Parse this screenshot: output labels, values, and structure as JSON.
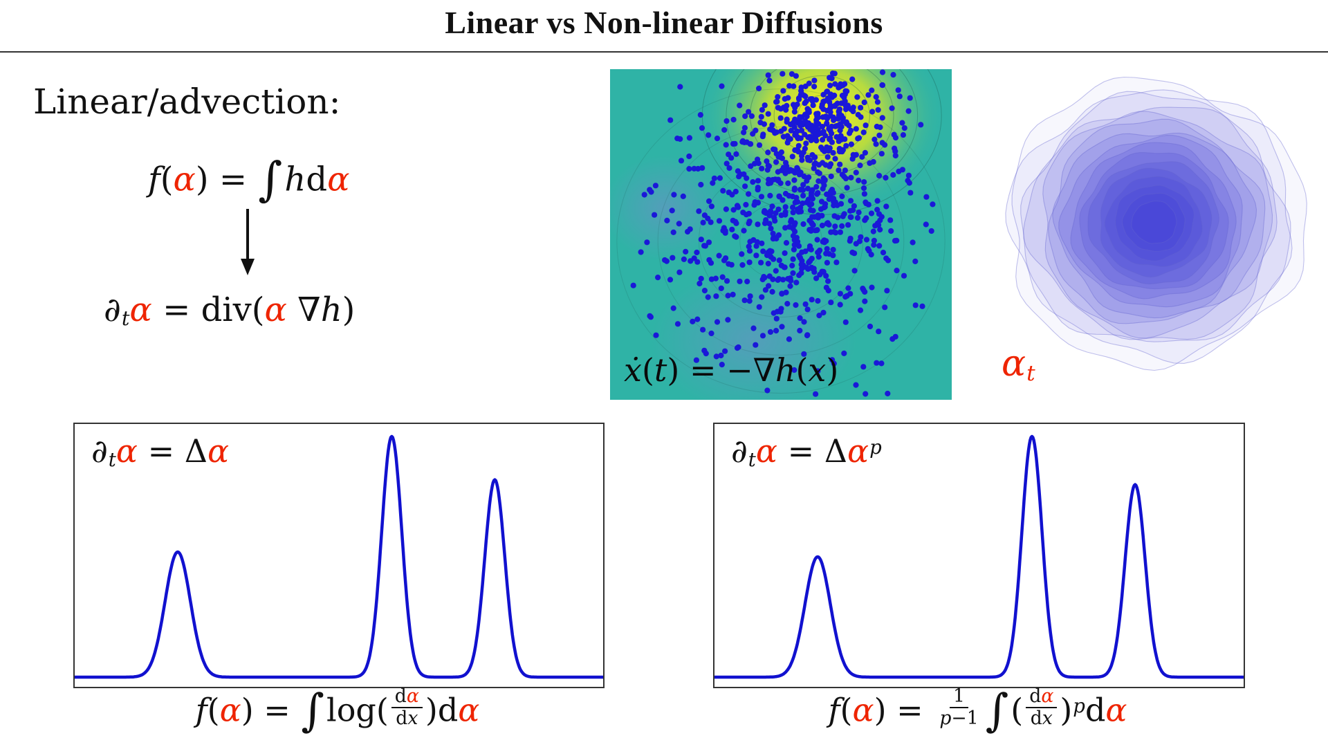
{
  "title": "Linear vs Non-linear Diffusions",
  "colors": {
    "red": "#ee2400",
    "curve_blue": "#1111cf",
    "dot_blue": "#1a18d8",
    "contour_blue": "#3e3cd6",
    "teal": "#2fb3a6",
    "hot_yellow": "#f8ee20"
  },
  "left_panel": {
    "heading": "Linear/advection:",
    "eq_functional": [
      {
        "t": "f",
        "i": 1
      },
      {
        "t": "("
      },
      {
        "t": "α",
        "i": 1,
        "c": "red"
      },
      {
        "t": ") = "
      },
      {
        "t": "∫",
        "big": 1
      },
      {
        "t": "h",
        "i": 1
      },
      {
        "t": "d"
      },
      {
        "t": "α",
        "i": 1,
        "c": "red"
      }
    ],
    "eq_pde": [
      {
        "t": "∂",
        "i": 1
      },
      {
        "t": "t",
        "sub": 1,
        "i": 1
      },
      {
        "t": "α",
        "i": 1,
        "c": "red"
      },
      {
        "t": " = div("
      },
      {
        "t": "α",
        "i": 1,
        "c": "red"
      },
      {
        "t": " ∇"
      },
      {
        "t": "h",
        "i": 1
      },
      {
        "t": ")"
      }
    ]
  },
  "scatter": {
    "equation": [
      {
        "t": "ẋ",
        "i": 1
      },
      {
        "t": "("
      },
      {
        "t": "t",
        "i": 1
      },
      {
        "t": ") = −∇"
      },
      {
        "t": "h",
        "i": 1
      },
      {
        "t": "("
      },
      {
        "t": "x",
        "i": 1
      },
      {
        "t": ")"
      }
    ]
  },
  "density": {
    "label": [
      {
        "t": "α",
        "i": 1,
        "c": "red"
      },
      {
        "t": "t",
        "sub": 1,
        "i": 1,
        "c": "red"
      }
    ]
  },
  "bottom_left": {
    "eq_pde": [
      {
        "t": "∂",
        "i": 1
      },
      {
        "t": "t",
        "sub": 1,
        "i": 1
      },
      {
        "t": "α",
        "i": 1,
        "c": "red"
      },
      {
        "t": " = Δ"
      },
      {
        "t": "α",
        "i": 1,
        "c": "red"
      }
    ],
    "eq_functional": [
      {
        "t": "f",
        "i": 1
      },
      {
        "t": "("
      },
      {
        "t": "α",
        "i": 1,
        "c": "red"
      },
      {
        "t": ") = "
      },
      {
        "t": "∫",
        "big": 1
      },
      {
        "t": "log("
      },
      {
        "frac": {
          "num": [
            {
              "t": "d"
            },
            {
              "t": "α",
              "i": 1,
              "c": "red"
            }
          ],
          "den": [
            {
              "t": "d"
            },
            {
              "t": "x",
              "i": 1
            }
          ]
        }
      },
      {
        "t": ")d"
      },
      {
        "t": "α",
        "i": 1,
        "c": "red"
      }
    ]
  },
  "bottom_right": {
    "eq_pde": [
      {
        "t": "∂",
        "i": 1
      },
      {
        "t": "t",
        "sub": 1,
        "i": 1
      },
      {
        "t": "α",
        "i": 1,
        "c": "red"
      },
      {
        "t": " = Δ"
      },
      {
        "t": "α",
        "i": 1,
        "c": "red"
      },
      {
        "t": "p",
        "sup": 1,
        "i": 1
      }
    ],
    "eq_functional": [
      {
        "t": "f",
        "i": 1
      },
      {
        "t": "("
      },
      {
        "t": "α",
        "i": 1,
        "c": "red"
      },
      {
        "t": ") = "
      },
      {
        "frac": {
          "num": [
            {
              "t": "1"
            }
          ],
          "den": [
            {
              "t": "p",
              "i": 1
            },
            {
              "t": "−1"
            }
          ]
        }
      },
      {
        "t": "∫",
        "big": 1
      },
      {
        "t": "("
      },
      {
        "frac": {
          "num": [
            {
              "t": "d"
            },
            {
              "t": "α",
              "i": 1,
              "c": "red"
            }
          ],
          "den": [
            {
              "t": "d"
            },
            {
              "t": "x",
              "i": 1
            }
          ]
        }
      },
      {
        "t": ")"
      },
      {
        "t": "p",
        "sup": 1,
        "i": 1
      },
      {
        "t": "d"
      },
      {
        "t": "α",
        "i": 1,
        "c": "red"
      }
    ]
  },
  "chart_data": [
    {
      "id": "particle-scatter",
      "type": "scatter",
      "overlay_equation": "x'(t) = -∇h(x)",
      "n_points": 950,
      "point_color": "#1a18d8",
      "background_colors": {
        "base": "#2fb3a6",
        "hotspot": "#f8ee20",
        "low": "#8a7fd8"
      },
      "clusters": [
        {
          "cx": 0.55,
          "cy": 0.42,
          "sx": 0.16,
          "sy": 0.17,
          "weight": 0.5
        },
        {
          "cx": 0.62,
          "cy": 0.15,
          "sx": 0.1,
          "sy": 0.07,
          "weight": 0.27
        },
        {
          "cx": 0.48,
          "cy": 0.55,
          "sx": 0.26,
          "sy": 0.24,
          "weight": 0.23
        }
      ]
    },
    {
      "id": "alpha-density",
      "type": "heatmap",
      "label": "α_t",
      "n_levels": 16,
      "center": [
        0.5,
        0.46
      ],
      "radius": [
        0.46,
        0.44
      ],
      "color": "#3e3cd6"
    },
    {
      "id": "linear-diffusion",
      "type": "line",
      "equation": "∂_t α = Δα",
      "x_range": [
        0,
        1
      ],
      "line_color": "#1111cf",
      "peaks": [
        {
          "center": 0.195,
          "height": 0.52,
          "sigma": 0.024
        },
        {
          "center": 0.6,
          "height": 1.0,
          "sigma": 0.019
        },
        {
          "center": 0.795,
          "height": 0.82,
          "sigma": 0.019
        }
      ]
    },
    {
      "id": "nonlinear-diffusion",
      "type": "line",
      "equation": "∂_t α = Δα^p",
      "x_range": [
        0,
        1
      ],
      "line_color": "#1111cf",
      "peaks": [
        {
          "center": 0.195,
          "height": 0.5,
          "sigma": 0.024
        },
        {
          "center": 0.6,
          "height": 1.0,
          "sigma": 0.019
        },
        {
          "center": 0.795,
          "height": 0.8,
          "sigma": 0.019
        }
      ]
    }
  ]
}
